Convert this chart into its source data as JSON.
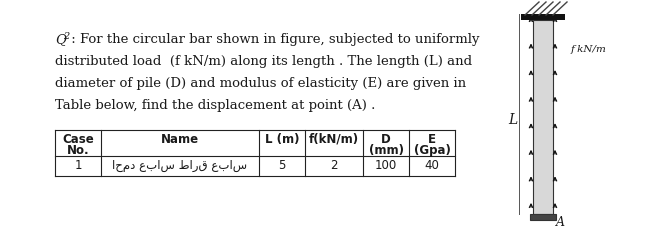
{
  "paragraph_lines": [
    "Q₂ : For the circular bar shown in figure, subjected to uniformly",
    "distributed load  (f kN/m) along its length . The length (L) and",
    "diameter of pile (D) and modulus of elasticity (E) are given in",
    "Table below, find the displacement at point (A) ."
  ],
  "L_label": "L",
  "f_label": "f kN/m",
  "A_label": "A",
  "table_headers_row1": [
    "Case",
    "Name",
    "L (m)",
    "f(kN/m)",
    "D",
    "E"
  ],
  "table_headers_row2": [
    "No.",
    "",
    "",
    "",
    "(mm)",
    "(Gpa)"
  ],
  "table_row": [
    "1",
    "احمد عباس طارق عباس",
    "5",
    "2",
    "100",
    "40"
  ],
  "text_color": "#1a1a1a",
  "table_line_color": "#222222",
  "bar_color": "#d8d8d8",
  "wall_color": "#111111",
  "arrow_color": "#111111"
}
